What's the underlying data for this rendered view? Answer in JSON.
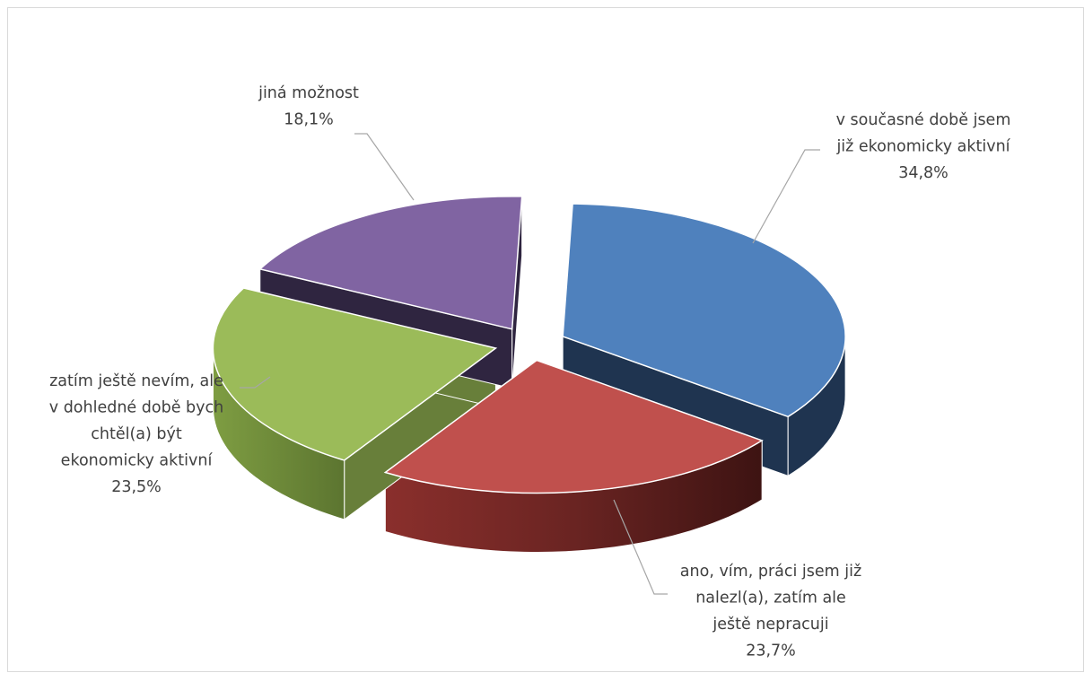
{
  "chart_data": {
    "type": "pie",
    "style": "3D exploded pie",
    "title": "",
    "legend": "none",
    "slices": [
      {
        "label_lines": [
          "v současné době jsem",
          "již ekonomicky aktivní"
        ],
        "value": 34.8,
        "value_label": "34,8%",
        "color": "#4f81bd",
        "side_color": "#1f3450"
      },
      {
        "label_lines": [
          "ano, vím, práci jsem již",
          "nalezl(a), zatím ale",
          "ještě nepracuji"
        ],
        "value": 23.7,
        "value_label": "23,7%",
        "color": "#c0504d",
        "side_color": "#5c1f1e"
      },
      {
        "label_lines": [
          "zatím ještě nevím, ale",
          "v dohledné době bych",
          "chtěl(a) být",
          "ekonomicky aktivní"
        ],
        "value": 23.5,
        "value_label": "23,5%",
        "color": "#9bbb59",
        "side_color": "#687f3a"
      },
      {
        "label_lines": [
          "jiná možnost"
        ],
        "value": 18.1,
        "value_label": "18,1%",
        "color": "#8064a2",
        "side_color": "#2f2540"
      }
    ]
  }
}
